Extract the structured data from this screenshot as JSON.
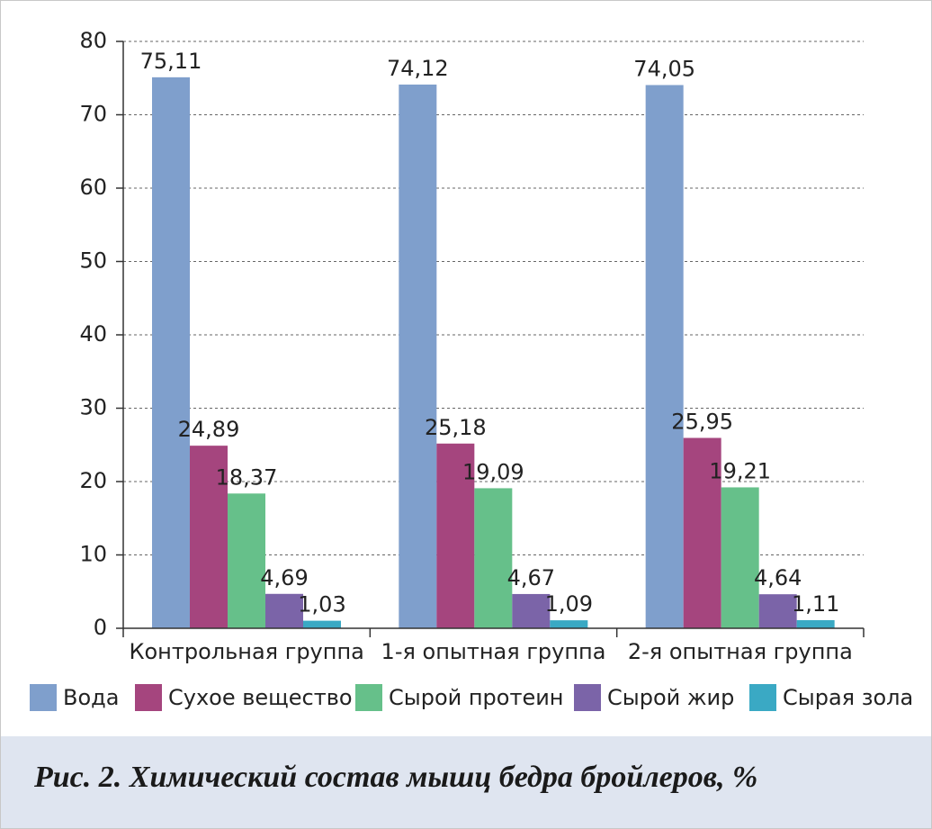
{
  "chart_data": {
    "type": "bar",
    "title": "Рис. 2. Химический состав мышц бедра бройлеров, %",
    "categories": [
      "Контрольная группа",
      "1-я опытная группа",
      "2-я опытная группа"
    ],
    "series": [
      {
        "name": "Вода",
        "color": "#7f9fcc",
        "values": [
          75.11,
          74.12,
          74.05
        ],
        "value_labels": [
          "75,11",
          "74,12",
          "74,05"
        ]
      },
      {
        "name": "Сухое вещество",
        "color": "#a5457e",
        "values": [
          24.89,
          25.18,
          25.95
        ],
        "value_labels": [
          "24,89",
          "25,18",
          "25,95"
        ]
      },
      {
        "name": "Сырой протеин",
        "color": "#66c08a",
        "values": [
          18.37,
          19.09,
          19.21
        ],
        "value_labels": [
          "18,37",
          "19,09",
          "19,21"
        ]
      },
      {
        "name": "Сырой жир",
        "color": "#7b64a8",
        "values": [
          4.69,
          4.67,
          4.64
        ],
        "value_labels": [
          "4,69",
          "4,67",
          "4,64"
        ]
      },
      {
        "name": "Сырая зола",
        "color": "#3aa9c4",
        "values": [
          1.03,
          1.09,
          1.11
        ],
        "value_labels": [
          "1,03",
          "1,09",
          "1,11"
        ]
      }
    ],
    "ylim": [
      0,
      80
    ],
    "yticks": [
      0,
      10,
      20,
      30,
      40,
      50,
      60,
      70,
      80
    ],
    "grid": true,
    "legend": "bottom"
  }
}
